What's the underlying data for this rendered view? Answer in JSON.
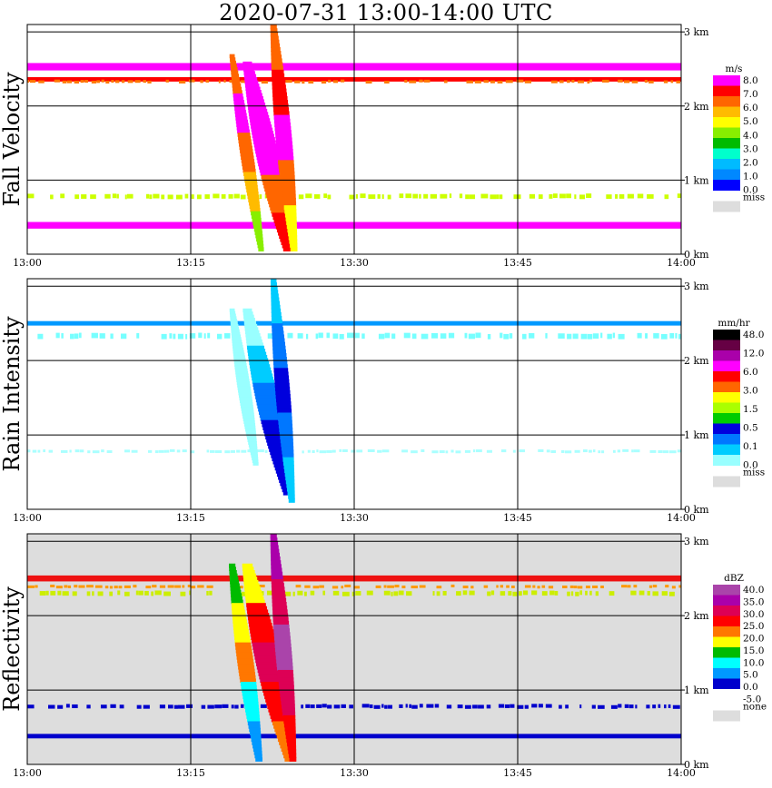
{
  "title": "2020-07-31   13:00-14:00 UTC",
  "chart_data": [
    {
      "type": "heatmap",
      "panel": "fall_velocity",
      "ylabel": "Fall Velocity",
      "x_ticks": [
        "13:00",
        "13:15",
        "13:30",
        "13:45",
        "14:00"
      ],
      "y_ticks": [
        "0 km",
        "1 km",
        "2 km",
        "3 km"
      ],
      "ylim_km": [
        0,
        3.1
      ],
      "background": "#ffffff",
      "colorbar": {
        "unit": "m/s",
        "labels": [
          "8.0",
          "7.0",
          "6.0",
          "5.0",
          "4.0",
          "3.0",
          "2.0",
          "1.0",
          "0.0"
        ],
        "colors": [
          "#ff00ff",
          "#ff0000",
          "#ff6600",
          "#ffbb00",
          "#ffff00",
          "#88ee00",
          "#00bb00",
          "#00ffcc",
          "#00bbff",
          "#0088ff",
          "#0000ff"
        ],
        "missing_label": "miss",
        "missing_color": "#dddddd"
      },
      "bands": [
        {
          "alt_km": 2.53,
          "thick_km": 0.1,
          "color": "#ff00ff",
          "solid": true
        },
        {
          "alt_km": 2.36,
          "thick_km": 0.06,
          "color": "#ff0000",
          "solid": true
        },
        {
          "alt_km": 2.33,
          "thick_km": 0.03,
          "color": "#ff7700",
          "solid": false
        },
        {
          "alt_km": 0.78,
          "thick_km": 0.06,
          "color": "#ccff00",
          "solid": false
        },
        {
          "alt_km": 0.39,
          "thick_km": 0.09,
          "color": "#ff00ff",
          "solid": true
        }
      ],
      "streaks": [
        {
          "t_top": 20.2,
          "alt_top": 2.6,
          "t_bot": 24.0,
          "alt_bot": 0.05,
          "width_min": 1.4,
          "colors": [
            "#ff00ff",
            "#ff00ff",
            "#ff00ff",
            "#ff6600",
            "#ff0000"
          ]
        },
        {
          "t_top": 22.6,
          "alt_top": 3.1,
          "t_bot": 24.5,
          "alt_bot": 0.05,
          "width_min": 1.0,
          "colors": [
            "#ff6600",
            "#ff0000",
            "#ff00ff",
            "#ff6600",
            "#ffff00"
          ]
        },
        {
          "t_top": 18.8,
          "alt_top": 2.7,
          "t_bot": 21.5,
          "alt_bot": 0.05,
          "width_min": 0.8,
          "colors": [
            "#ff6600",
            "#ff00ff",
            "#ff6600",
            "#ffbb00",
            "#88ee00"
          ]
        }
      ]
    },
    {
      "type": "heatmap",
      "panel": "rain_intensity",
      "ylabel": "Rain Intensity",
      "x_ticks": [
        "13:00",
        "13:15",
        "13:30",
        "13:45",
        "14:00"
      ],
      "y_ticks": [
        "0 km",
        "1 km",
        "2 km",
        "3 km"
      ],
      "ylim_km": [
        0,
        3.1
      ],
      "background": "#ffffff",
      "colorbar": {
        "unit": "mm/hr",
        "labels": [
          "48.0",
          "12.0",
          "6.0",
          "3.0",
          "1.5",
          "0.5",
          "0.1",
          "0.0"
        ],
        "colors": [
          "#000000",
          "#660044",
          "#aa00aa",
          "#ff00ff",
          "#ff0000",
          "#ff6600",
          "#ffff00",
          "#aaff00",
          "#00cc00",
          "#0000dd",
          "#0077ff",
          "#00ccff",
          "#99ffff"
        ],
        "missing_label": "miss",
        "missing_color": "#dddddd"
      },
      "bands": [
        {
          "alt_km": 2.5,
          "thick_km": 0.06,
          "color": "#0099ff",
          "solid": true
        },
        {
          "alt_km": 2.33,
          "thick_km": 0.07,
          "color": "#77ffff",
          "solid": false
        },
        {
          "alt_km": 0.78,
          "thick_km": 0.02,
          "color": "#aaffff",
          "solid": false
        }
      ],
      "streaks": [
        {
          "t_top": 20.2,
          "alt_top": 2.7,
          "t_bot": 24.0,
          "alt_bot": 0.2,
          "width_min": 1.4,
          "colors": [
            "#99ffff",
            "#00ccff",
            "#0077ff",
            "#0000dd",
            "#0000dd"
          ]
        },
        {
          "t_top": 22.6,
          "alt_top": 3.1,
          "t_bot": 24.3,
          "alt_bot": 0.1,
          "width_min": 0.9,
          "colors": [
            "#00ccff",
            "#0077ff",
            "#0000dd",
            "#0077ff",
            "#00ccff"
          ]
        },
        {
          "t_top": 18.8,
          "alt_top": 2.7,
          "t_bot": 21.0,
          "alt_bot": 0.6,
          "width_min": 0.8,
          "colors": [
            "#99ffff",
            "#99ffff",
            "#99ffff",
            "#99ffff",
            "#99ffff"
          ]
        }
      ]
    },
    {
      "type": "heatmap",
      "panel": "reflectivity",
      "ylabel": "Reflectivity",
      "x_ticks": [
        "13:00",
        "13:15",
        "13:30",
        "13:45",
        "14:00"
      ],
      "y_ticks": [
        "0 km",
        "1 km",
        "2 km",
        "3 km"
      ],
      "ylim_km": [
        0,
        3.1
      ],
      "background": "#dddddd",
      "colorbar": {
        "unit": "dBZ",
        "labels": [
          "40.0",
          "35.0",
          "30.0",
          "25.0",
          "20.0",
          "15.0",
          "10.0",
          "5.0",
          "0.0",
          "-5.0"
        ],
        "colors": [
          "#aa44aa",
          "#aa00aa",
          "#dd0055",
          "#ff0000",
          "#ff7700",
          "#ffff00",
          "#00bb00",
          "#00ffff",
          "#0099ff",
          "#0000cc",
          "#ffffff"
        ],
        "missing_label": "none",
        "missing_color": "#dddddd"
      },
      "bands": [
        {
          "alt_km": 2.5,
          "thick_km": 0.08,
          "color": "#ee1111",
          "solid": true
        },
        {
          "alt_km": 2.39,
          "thick_km": 0.03,
          "color": "#ff9900",
          "solid": false
        },
        {
          "alt_km": 2.3,
          "thick_km": 0.06,
          "color": "#ccee00",
          "solid": false
        },
        {
          "alt_km": 0.78,
          "thick_km": 0.05,
          "color": "#0000cc",
          "solid": false
        },
        {
          "alt_km": 0.38,
          "thick_km": 0.06,
          "color": "#0000cc",
          "solid": true
        }
      ],
      "streaks": [
        {
          "t_top": 20.2,
          "alt_top": 2.7,
          "t_bot": 24.2,
          "alt_bot": 0.05,
          "width_min": 1.6,
          "colors": [
            "#ffff00",
            "#ff0000",
            "#dd0055",
            "#ff0000",
            "#ff7700"
          ]
        },
        {
          "t_top": 22.6,
          "alt_top": 3.1,
          "t_bot": 24.4,
          "alt_bot": 0.05,
          "width_min": 1.0,
          "colors": [
            "#aa00aa",
            "#dd0055",
            "#aa44aa",
            "#dd0055",
            "#ff0000"
          ]
        },
        {
          "t_top": 18.8,
          "alt_top": 2.7,
          "t_bot": 21.3,
          "alt_bot": 0.05,
          "width_min": 1.0,
          "colors": [
            "#00bb00",
            "#ffff00",
            "#ff7700",
            "#00ffff",
            "#0099ff"
          ]
        }
      ]
    }
  ]
}
